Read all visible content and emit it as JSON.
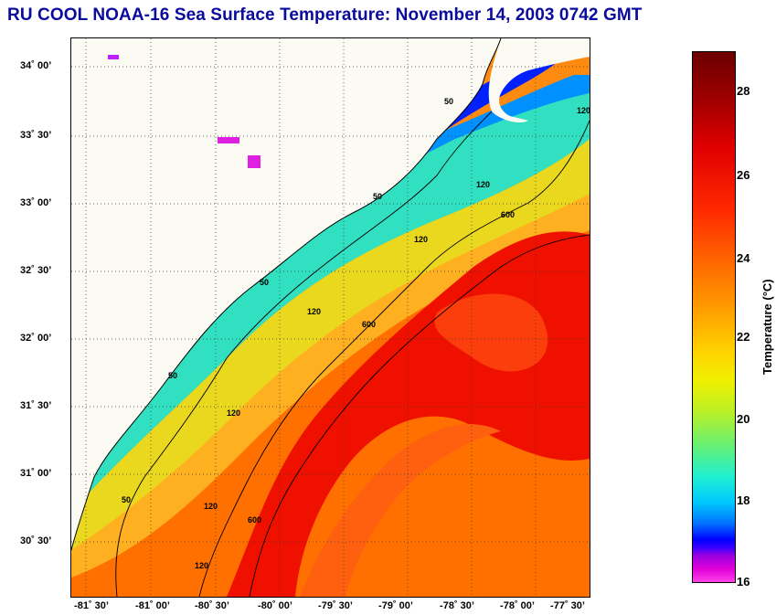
{
  "title": "RU COOL  NOAA-16  Sea Surface Temperature:  November 14, 2003 0742 GMT",
  "map": {
    "lat_labels": [
      "34˚ 00’",
      "33˚ 30’",
      "33˚ 00’",
      "32˚ 30’",
      "32˚ 00’",
      "31˚ 30’",
      "31˚ 00’",
      "30˚ 30’"
    ],
    "lon_labels": [
      "-81˚ 30’",
      "-81˚ 00’",
      "-80˚ 30’",
      "-80˚ 00’",
      "-79˚ 30’",
      "-79˚ 00’",
      "-78˚ 30’",
      "-78˚ 00’",
      "-77˚ 30’"
    ],
    "contour_labels": [
      "50",
      "50",
      "50",
      "50",
      "50",
      "120",
      "120",
      "120",
      "120",
      "120",
      "120",
      "120",
      "600",
      "600",
      "600"
    ]
  },
  "colorbar": {
    "label": "Temperature (°C)",
    "ticks": [
      "28",
      "26",
      "24",
      "22",
      "20",
      "18",
      "16"
    ],
    "colors": {
      "max": "#6b0000",
      "red": "#e00000",
      "orange": "#ff9a00",
      "yellow": "#f0f000",
      "cyan": "#20f0d0",
      "blue": "#0000ff",
      "magenta": "#ff40e8"
    }
  }
}
